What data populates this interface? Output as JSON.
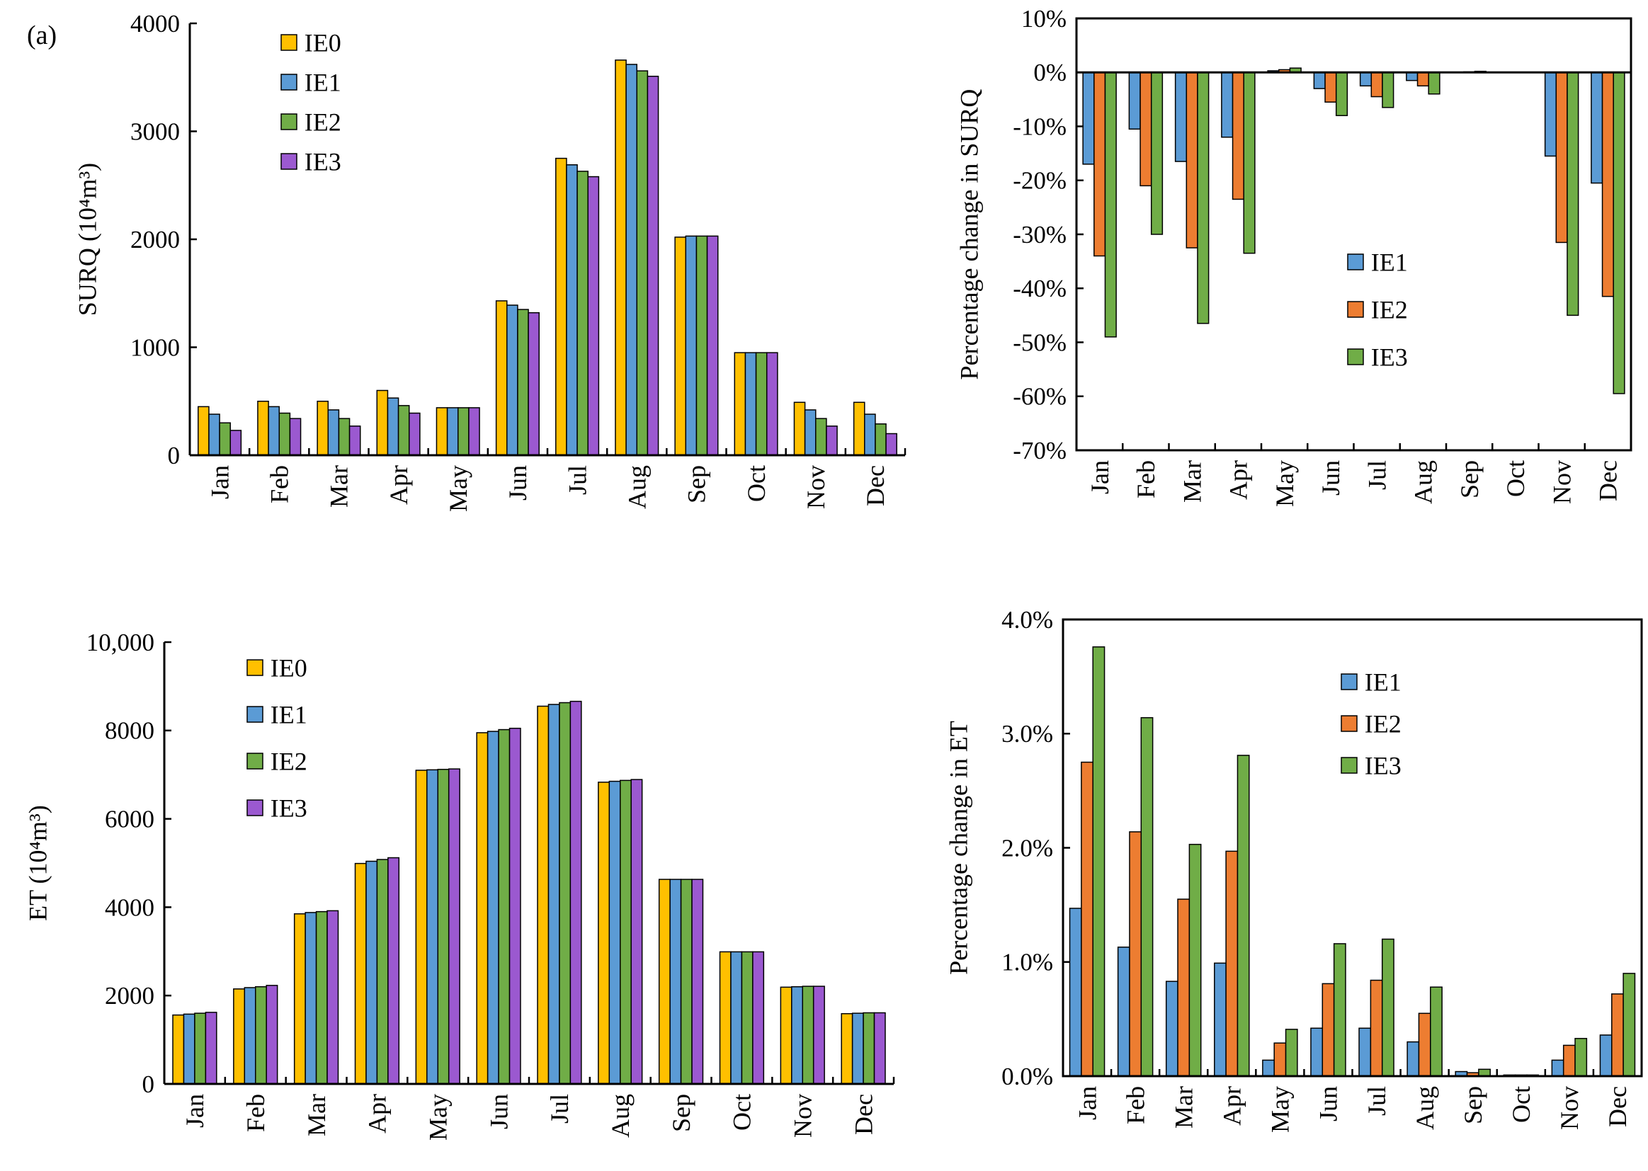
{
  "figure": {
    "panel_label": "(a)"
  },
  "colors": {
    "IE0": "#FFC000",
    "IE1": "#5B9BD5",
    "IE2": "#70AD47",
    "IE3": "#9B59D0",
    "IE2_orange": "#ED7D31"
  },
  "chart_data": [
    {
      "id": "surq",
      "type": "bar",
      "ylabel": "SURQ (10⁴m³)",
      "ylim": [
        0,
        4000
      ],
      "yticks": [
        "0",
        "1000",
        "2000",
        "3000",
        "4000"
      ],
      "categories": [
        "Jan",
        "Feb",
        "Mar",
        "Apr",
        "May",
        "Jun",
        "Jul",
        "Aug",
        "Sep",
        "Oct",
        "Nov",
        "Dec"
      ],
      "legend": "top-left",
      "series": [
        {
          "name": "IE0",
          "color": "#FFC000",
          "values": [
            450,
            500,
            500,
            600,
            440,
            1430,
            2750,
            3660,
            2020,
            950,
            490,
            490
          ]
        },
        {
          "name": "IE1",
          "color": "#5B9BD5",
          "values": [
            380,
            450,
            420,
            530,
            440,
            1390,
            2690,
            3620,
            2030,
            950,
            420,
            380
          ]
        },
        {
          "name": "IE2",
          "color": "#70AD47",
          "values": [
            300,
            390,
            340,
            460,
            440,
            1350,
            2630,
            3560,
            2030,
            950,
            340,
            290
          ]
        },
        {
          "name": "IE3",
          "color": "#9B59D0",
          "values": [
            230,
            340,
            270,
            390,
            440,
            1320,
            2580,
            3510,
            2030,
            950,
            270,
            200
          ]
        }
      ]
    },
    {
      "id": "surq_pct",
      "type": "bar",
      "ylabel": "Percentage change in SURQ",
      "ylim": [
        -70,
        10
      ],
      "yticks": [
        "-70%",
        "-60%",
        "-50%",
        "-40%",
        "-30%",
        "-20%",
        "-10%",
        "0%",
        "10%"
      ],
      "categories": [
        "Jan",
        "Feb",
        "Mar",
        "Apr",
        "May",
        "Jun",
        "Jul",
        "Aug",
        "Sep",
        "Oct",
        "Nov",
        "Dec"
      ],
      "legend": "center-right",
      "series": [
        {
          "name": "IE1",
          "color": "#5B9BD5",
          "values": [
            -17,
            -10.5,
            -16.5,
            -12,
            0.3,
            -3,
            -2.5,
            -1.5,
            0,
            0,
            -15.5,
            -20.5
          ]
        },
        {
          "name": "IE2",
          "color": "#ED7D31",
          "values": [
            -34,
            -21,
            -32.5,
            -23.5,
            0.5,
            -5.5,
            -4.5,
            -2.5,
            0.1,
            0,
            -31.5,
            -41.5
          ]
        },
        {
          "name": "IE3",
          "color": "#70AD47",
          "values": [
            -49,
            -30,
            -46.5,
            -33.5,
            0.8,
            -8,
            -6.5,
            -4,
            0.2,
            0,
            -45,
            -59.5
          ]
        }
      ]
    },
    {
      "id": "et",
      "type": "bar",
      "ylabel": "ET (10⁴m³)",
      "ylim": [
        0,
        10000
      ],
      "yticks": [
        "0",
        "2000",
        "4000",
        "6000",
        "8000",
        "10,000"
      ],
      "categories": [
        "Jan",
        "Feb",
        "Mar",
        "Apr",
        "May",
        "Jun",
        "Jul",
        "Aug",
        "Sep",
        "Oct",
        "Nov",
        "Dec"
      ],
      "legend": "top-left",
      "series": [
        {
          "name": "IE0",
          "color": "#FFC000",
          "values": [
            1560,
            2150,
            3850,
            4990,
            7100,
            7950,
            8550,
            6830,
            4630,
            2990,
            2190,
            1590
          ]
        },
        {
          "name": "IE1",
          "color": "#5B9BD5",
          "values": [
            1580,
            2180,
            3880,
            5040,
            7110,
            7980,
            8590,
            6850,
            4630,
            2990,
            2200,
            1600
          ]
        },
        {
          "name": "IE2",
          "color": "#70AD47",
          "values": [
            1600,
            2200,
            3900,
            5080,
            7120,
            8020,
            8630,
            6870,
            4630,
            2990,
            2210,
            1610
          ]
        },
        {
          "name": "IE3",
          "color": "#9B59D0",
          "values": [
            1620,
            2230,
            3920,
            5120,
            7130,
            8050,
            8660,
            6890,
            4630,
            2990,
            2210,
            1610
          ]
        }
      ]
    },
    {
      "id": "et_pct",
      "type": "bar",
      "ylabel": "Percentage change in ET",
      "ylim": [
        0,
        4
      ],
      "yticks": [
        "0.0%",
        "1.0%",
        "2.0%",
        "3.0%",
        "4.0%"
      ],
      "categories": [
        "Jan",
        "Feb",
        "Mar",
        "Apr",
        "May",
        "Jun",
        "Jul",
        "Aug",
        "Sep",
        "Oct",
        "Nov",
        "Dec"
      ],
      "legend": "top-center",
      "series": [
        {
          "name": "IE1",
          "color": "#5B9BD5",
          "values": [
            1.47,
            1.13,
            0.83,
            0.99,
            0.14,
            0.42,
            0.42,
            0.3,
            0.04,
            0.01,
            0.14,
            0.36
          ]
        },
        {
          "name": "IE2",
          "color": "#ED7D31",
          "values": [
            2.75,
            2.14,
            1.55,
            1.97,
            0.29,
            0.81,
            0.84,
            0.55,
            0.03,
            0.01,
            0.27,
            0.72
          ]
        },
        {
          "name": "IE3",
          "color": "#70AD47",
          "values": [
            3.76,
            3.14,
            2.03,
            2.81,
            0.41,
            1.16,
            1.2,
            0.78,
            0.06,
            0.01,
            0.33,
            0.9
          ]
        }
      ]
    }
  ]
}
